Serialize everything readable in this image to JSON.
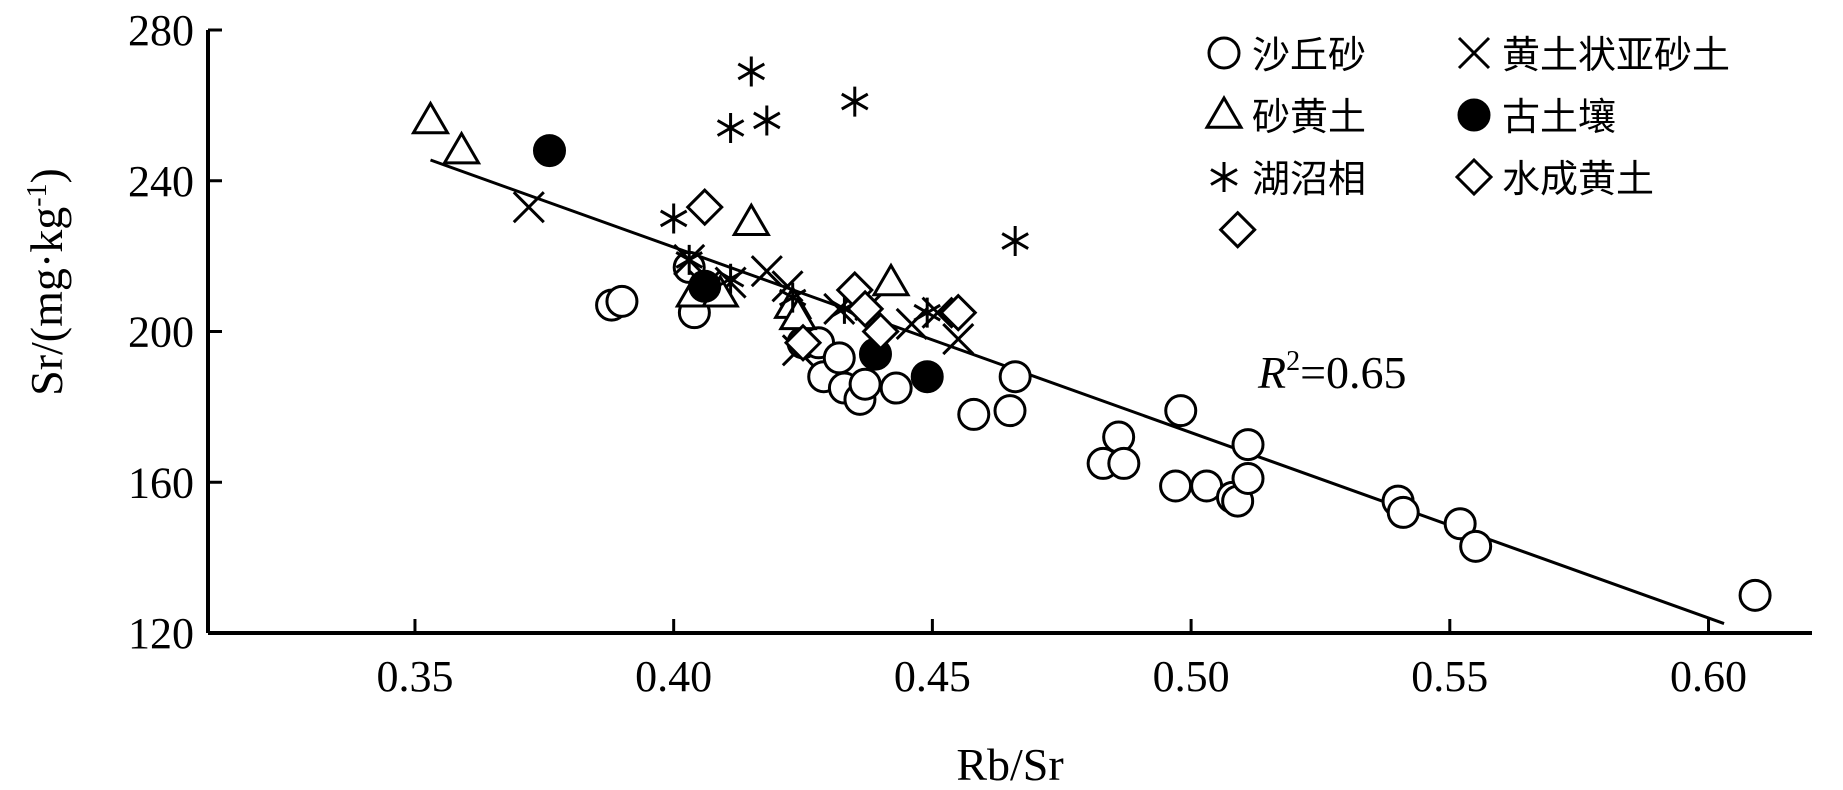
{
  "chart_data": {
    "type": "scatter",
    "xlabel": "Rb/Sr",
    "ylabel": "Sr/(mg·kg",
    "ylabel_sup": "-1",
    "ylabel_close": ")",
    "xlim": [
      0.31,
      0.62
    ],
    "ylim": [
      120,
      280
    ],
    "x_ticks": [
      "0.35",
      "0.40",
      "0.45",
      "0.50",
      "0.55",
      "0.60"
    ],
    "y_ticks": [
      "120",
      "160",
      "200",
      "240",
      "280"
    ],
    "grid": false,
    "legend_position": "top-right",
    "annotation": {
      "prefix": "R",
      "sup": "2",
      "suffix": "=0.65"
    },
    "trendline": {
      "x": [
        0.353,
        0.603
      ],
      "y": [
        245.5,
        122.5
      ]
    },
    "series": [
      {
        "name": "沙丘砂",
        "marker": "circle-open",
        "points": [
          [
            0.388,
            207
          ],
          [
            0.39,
            208
          ],
          [
            0.403,
            217
          ],
          [
            0.404,
            205
          ],
          [
            0.425,
            197
          ],
          [
            0.428,
            197
          ],
          [
            0.429,
            188
          ],
          [
            0.432,
            193
          ],
          [
            0.433,
            185
          ],
          [
            0.436,
            182
          ],
          [
            0.437,
            186
          ],
          [
            0.443,
            185
          ],
          [
            0.458,
            178
          ],
          [
            0.465,
            179
          ],
          [
            0.466,
            188
          ],
          [
            0.483,
            165
          ],
          [
            0.486,
            172
          ],
          [
            0.487,
            165
          ],
          [
            0.497,
            159
          ],
          [
            0.498,
            179
          ],
          [
            0.503,
            159
          ],
          [
            0.508,
            156
          ],
          [
            0.509,
            155
          ],
          [
            0.511,
            170
          ],
          [
            0.511,
            161
          ],
          [
            0.54,
            155
          ],
          [
            0.541,
            152
          ],
          [
            0.552,
            149
          ],
          [
            0.555,
            143
          ],
          [
            0.609,
            130
          ]
        ]
      },
      {
        "name": "黄土状亚砂土",
        "marker": "x",
        "points": [
          [
            0.372,
            233
          ],
          [
            0.403,
            219
          ],
          [
            0.406,
            212
          ],
          [
            0.411,
            213
          ],
          [
            0.418,
            216
          ],
          [
            0.422,
            212
          ],
          [
            0.424,
            195
          ],
          [
            0.432,
            206
          ],
          [
            0.438,
            207
          ],
          [
            0.446,
            202
          ],
          [
            0.451,
            205
          ],
          [
            0.455,
            198
          ]
        ]
      },
      {
        "name": "砂黄土",
        "marker": "triangle-open",
        "points": [
          [
            0.353,
            256
          ],
          [
            0.359,
            248
          ],
          [
            0.404,
            210
          ],
          [
            0.409,
            210
          ],
          [
            0.415,
            229
          ],
          [
            0.423,
            207
          ],
          [
            0.424,
            204
          ],
          [
            0.442,
            213
          ]
        ]
      },
      {
        "name": "古土壤",
        "marker": "circle-filled",
        "points": [
          [
            0.376,
            248
          ],
          [
            0.406,
            212
          ],
          [
            0.439,
            194
          ],
          [
            0.449,
            188
          ]
        ]
      },
      {
        "name": "湖沼相",
        "marker": "asterisk",
        "points": [
          [
            0.415,
            269
          ],
          [
            0.435,
            261
          ],
          [
            0.418,
            256
          ],
          [
            0.411,
            254
          ],
          [
            0.4,
            230
          ],
          [
            0.466,
            224
          ],
          [
            0.403,
            219
          ],
          [
            0.411,
            214
          ],
          [
            0.423,
            209
          ],
          [
            0.433,
            206
          ],
          [
            0.449,
            205
          ]
        ]
      },
      {
        "name": "水成黄土",
        "marker": "diamond-open",
        "points": [
          [
            0.406,
            233
          ],
          [
            0.509,
            227
          ],
          [
            0.435,
            211
          ],
          [
            0.437,
            206
          ],
          [
            0.455,
            205
          ],
          [
            0.44,
            200
          ],
          [
            0.425,
            197
          ]
        ]
      }
    ]
  }
}
